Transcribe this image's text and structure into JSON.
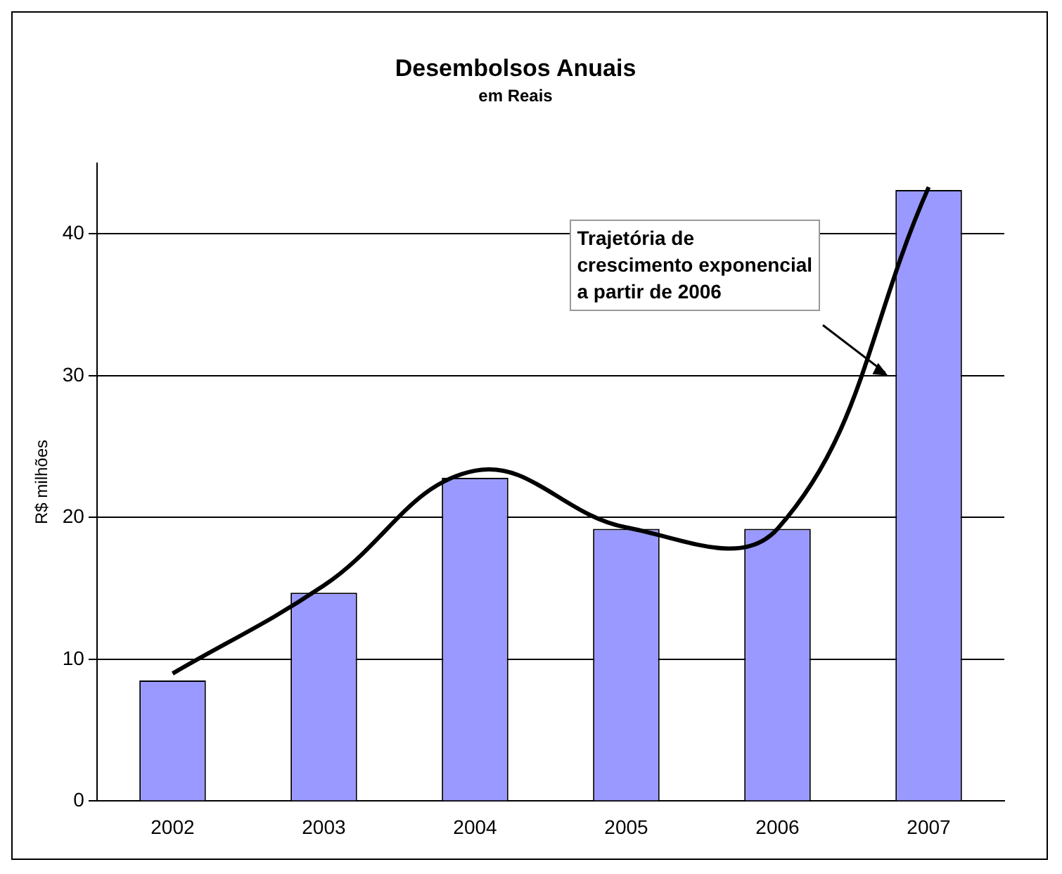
{
  "chart_data": {
    "type": "bar",
    "title": "Desembolsos Anuais",
    "subtitle": "em Reais",
    "ylabel": "R$ milhões",
    "categories": [
      "2002",
      "2003",
      "2004",
      "2005",
      "2006",
      "2007"
    ],
    "series": [
      {
        "color": "#9999ff",
        "values": [
          8.5,
          14.7,
          22.8,
          19.2,
          19.2,
          43.1
        ]
      },
      {
        "type": "line",
        "color": "#000000",
        "values": [
          9,
          15.2,
          23.3,
          19.3,
          19.2,
          43.3
        ]
      }
    ],
    "ylim": [
      0,
      45
    ],
    "yticks": [
      0,
      10,
      20,
      30,
      40
    ],
    "grid": "y",
    "marker": "none",
    "annotations": [
      "Trajetória de\ncrescimento exponencial\na partir de 2006"
    ]
  }
}
